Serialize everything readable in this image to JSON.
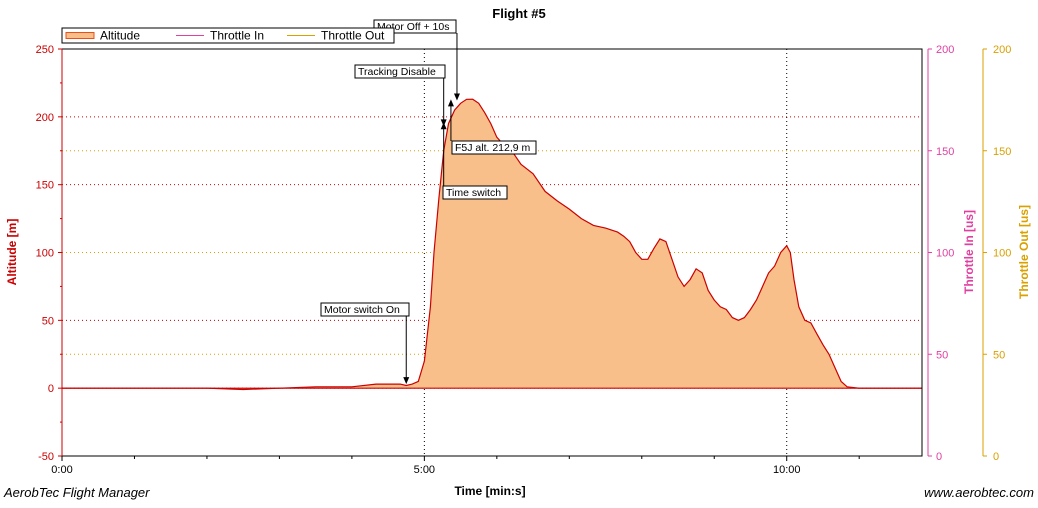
{
  "app": {
    "footer_left": "AerobTec Flight Manager",
    "footer_right": "www.aerobtec.com"
  },
  "chart_data": {
    "type": "area",
    "title": "Flight #5",
    "xlabel": "Time [min:s]",
    "ylabel": "Altitude [m]",
    "y2label": "Throttle In [us]",
    "y3label": "Throttle Out [us]",
    "xlim": [
      0,
      712
    ],
    "ylim": [
      -50,
      250
    ],
    "y2lim": [
      0,
      200
    ],
    "y3lim": [
      0,
      200
    ],
    "x_ticks": [
      {
        "value": 0,
        "label": "0:00"
      },
      {
        "value": 300,
        "label": "5:00"
      },
      {
        "value": 600,
        "label": "10:00"
      }
    ],
    "y_ticks": [
      -50,
      0,
      50,
      100,
      150,
      200,
      250
    ],
    "y2_ticks": [
      0,
      50,
      100,
      150,
      200
    ],
    "y3_ticks": [
      0,
      50,
      100,
      150,
      200
    ],
    "legend": {
      "placement": "top-left",
      "entries": [
        {
          "label": "Altitude",
          "color": "#e8501c"
        },
        {
          "label": "Throttle In",
          "color": "#e040a0"
        },
        {
          "label": "Throttle Out",
          "color": "#d9a000"
        }
      ]
    },
    "colors": {
      "altitude_line": "#cc0000",
      "altitude_fill": "#f9bf8a",
      "left_axis": "#cc0000",
      "throttle_in_axis": "#e040a0",
      "throttle_out_axis": "#d9a000",
      "grid_red": "#cc0000",
      "grid_yellow": "#d9a000"
    },
    "series": [
      {
        "name": "Altitude",
        "x": [
          0,
          30,
          60,
          90,
          120,
          150,
          180,
          210,
          240,
          260,
          280,
          285,
          290,
          295,
          300,
          305,
          308,
          312,
          316,
          320,
          325,
          330,
          335,
          340,
          345,
          350,
          355,
          360,
          365,
          370,
          380,
          390,
          400,
          410,
          420,
          430,
          440,
          450,
          460,
          465,
          470,
          475,
          480,
          485,
          490,
          495,
          500,
          505,
          510,
          515,
          520,
          525,
          530,
          535,
          540,
          545,
          550,
          555,
          560,
          565,
          570,
          575,
          580,
          585,
          590,
          595,
          600,
          603,
          606,
          610,
          615,
          620,
          625,
          630,
          635,
          640,
          645,
          650,
          660,
          680,
          712
        ],
        "y": [
          0,
          0,
          0,
          0,
          0,
          -1,
          0,
          1,
          1,
          3,
          3,
          2,
          3,
          5,
          20,
          60,
          100,
          140,
          175,
          195,
          205,
          210,
          212.9,
          213,
          210,
          203,
          195,
          185,
          180,
          178,
          165,
          158,
          145,
          138,
          132,
          125,
          120,
          118,
          115,
          112,
          108,
          100,
          95,
          95,
          103,
          110,
          108,
          95,
          82,
          75,
          80,
          88,
          85,
          72,
          65,
          60,
          58,
          52,
          50,
          52,
          58,
          65,
          75,
          85,
          90,
          100,
          105,
          100,
          80,
          60,
          50,
          48,
          40,
          32,
          25,
          15,
          5,
          1,
          0,
          0,
          0
        ]
      }
    ],
    "annotations": [
      {
        "text": "Motor switch On",
        "x": 285,
        "y": 3
      },
      {
        "text": "Tracking Disable",
        "x": 316,
        "y": 193
      },
      {
        "text": "Motor Off + 10s",
        "x": 327,
        "y": 212
      },
      {
        "text": "F5J alt. 212,9 m",
        "x": 322,
        "y": 212.9
      },
      {
        "text": "Time switch",
        "x": 316,
        "y": 196
      }
    ]
  }
}
